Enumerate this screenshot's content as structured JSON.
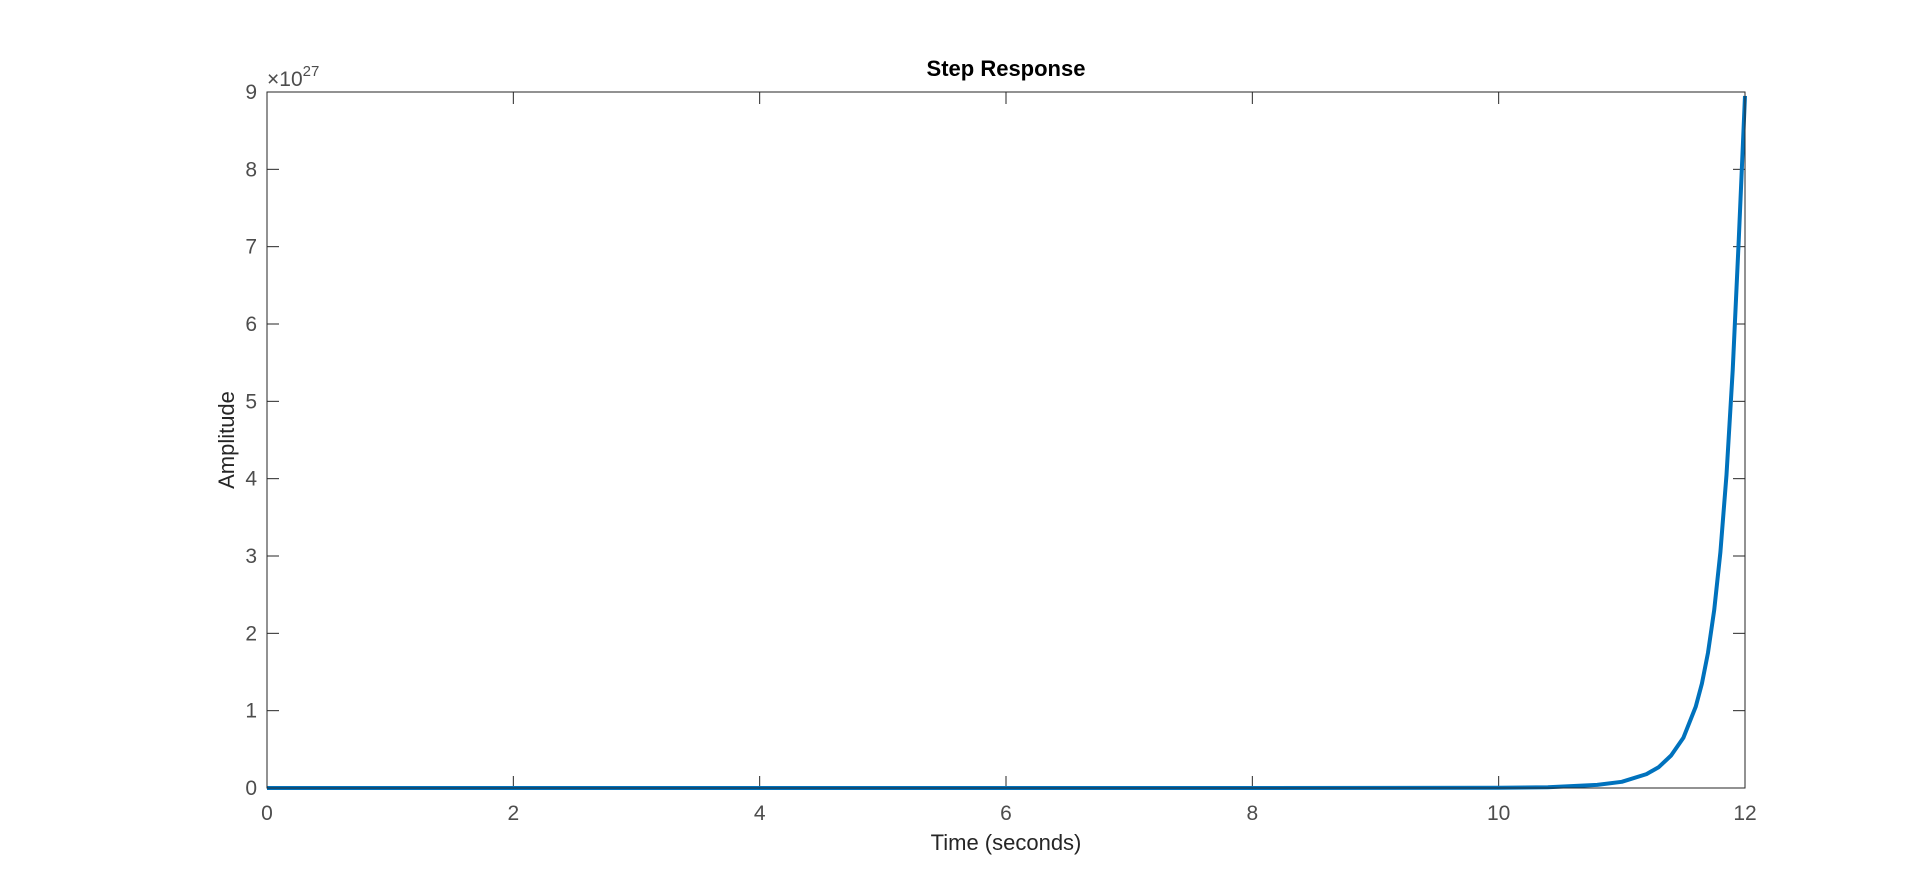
{
  "chart_data": {
    "type": "line",
    "title": "Step Response",
    "xlabel": "Time (seconds)",
    "ylabel": "Amplitude",
    "xlim": [
      0,
      12
    ],
    "ylim": [
      0,
      9
    ],
    "x_ticks": [
      "0",
      "2",
      "4",
      "6",
      "8",
      "10",
      "12"
    ],
    "y_ticks": [
      "0",
      "1",
      "2",
      "3",
      "4",
      "5",
      "6",
      "7",
      "8",
      "9"
    ],
    "y_exponent_prefix": "×10",
    "y_exponent": "27",
    "grid": false,
    "series": [
      {
        "color": "#0072BD",
        "x": [
          0,
          2,
          4,
          6,
          8,
          10,
          10.4,
          10.8,
          11.0,
          11.2,
          11.3,
          11.4,
          11.5,
          11.6,
          11.65,
          11.7,
          11.75,
          11.8,
          11.85,
          11.9,
          11.95,
          12.0
        ],
        "y": [
          0,
          0,
          0,
          0,
          0,
          0.002,
          0.01,
          0.04,
          0.08,
          0.18,
          0.27,
          0.42,
          0.65,
          1.05,
          1.35,
          1.75,
          2.3,
          3.05,
          4.05,
          5.4,
          7.1,
          8.95
        ]
      }
    ]
  }
}
